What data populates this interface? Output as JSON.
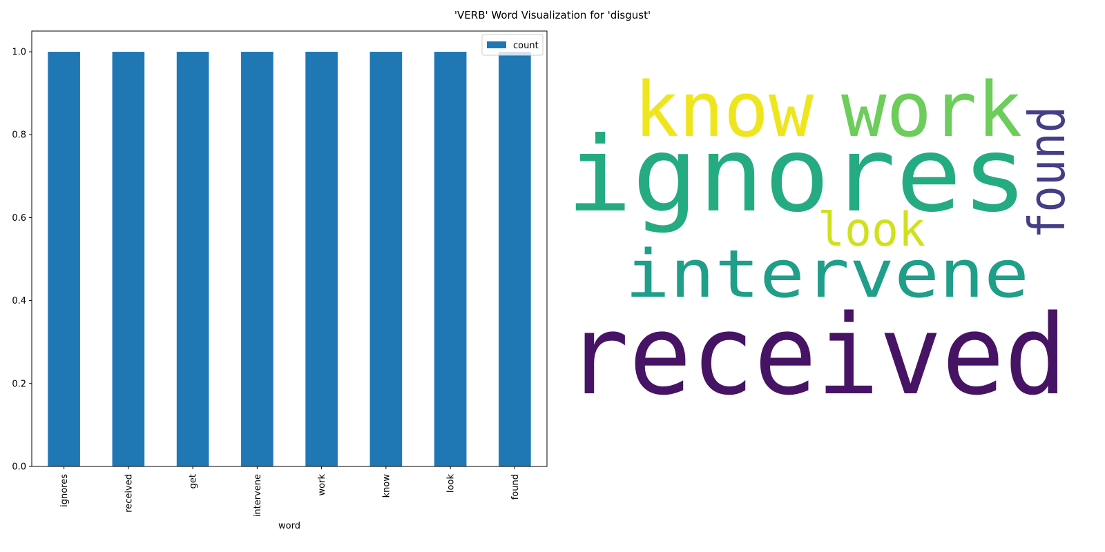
{
  "figure": {
    "suptitle": "'VERB' Word Visualization for 'disgust'"
  },
  "chart_data": [
    {
      "type": "bar",
      "xlabel": "word",
      "ylabel": "",
      "categories": [
        "ignores",
        "received",
        "get",
        "intervene",
        "work",
        "know",
        "look",
        "found"
      ],
      "series": [
        {
          "name": "count",
          "values": [
            1,
            1,
            1,
            1,
            1,
            1,
            1,
            1
          ],
          "color": "#1f77b4"
        }
      ],
      "ylim": [
        0,
        1.05
      ],
      "yticks": [
        0.0,
        0.2,
        0.4,
        0.6,
        0.8,
        1.0
      ],
      "ytick_labels": [
        "0.0",
        "0.2",
        "0.4",
        "0.6",
        "0.8",
        "1.0"
      ],
      "x_tick_rotation": "vertical",
      "legend_position": "top-right",
      "grid": false
    },
    {
      "type": "wordcloud",
      "words": [
        {
          "text": "received",
          "color": "#471365",
          "orientation": "horizontal"
        },
        {
          "text": "ignores",
          "color": "#25ab82",
          "orientation": "horizontal"
        },
        {
          "text": "intervene",
          "color": "#1f9e89",
          "orientation": "horizontal"
        },
        {
          "text": "know",
          "color": "#efe51c",
          "orientation": "horizontal"
        },
        {
          "text": "work",
          "color": "#6ccd5a",
          "orientation": "horizontal"
        },
        {
          "text": "look",
          "color": "#d0e11c",
          "orientation": "horizontal"
        },
        {
          "text": "found",
          "color": "#433e85",
          "orientation": "vertical"
        }
      ]
    }
  ]
}
